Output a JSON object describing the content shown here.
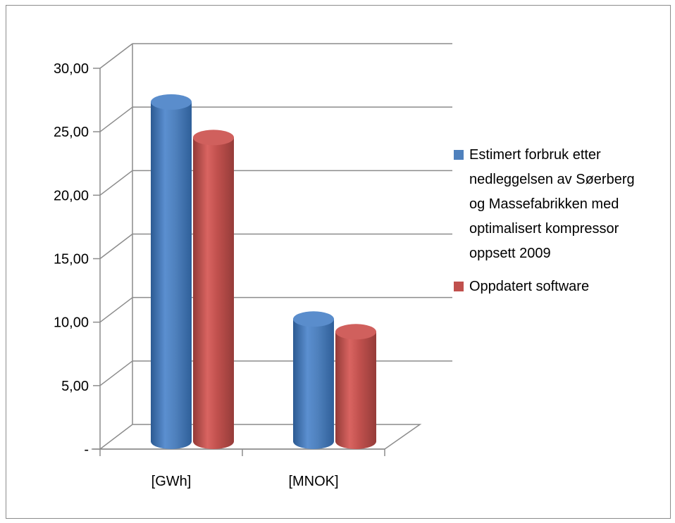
{
  "chart_data": {
    "type": "bar",
    "categories": [
      "[GWh]",
      "[MNOK]"
    ],
    "series": [
      {
        "name": "Estimert forbruk etter nedleggelsen av Søerberg og Massefabrikken med optimalisert kompressor oppsett 2009",
        "values": [
          26.9,
          9.8
        ],
        "color": "#4f81bd"
      },
      {
        "name": "Oppdatert software",
        "values": [
          24.1,
          8.8
        ],
        "color": "#c0504d"
      }
    ],
    "ylim": [
      0,
      30
    ],
    "yticks": [
      0,
      5,
      10,
      15,
      20,
      25,
      30
    ],
    "ytick_labels": [
      "-",
      "5,00",
      "10,00",
      "15,00",
      "20,00",
      "25,00",
      "30,00"
    ],
    "legend_position": "right",
    "grid": true,
    "legend": {
      "entries": [
        {
          "lines": [
            "Estimert forbruk etter",
            "nedleggelsen av Søerberg",
            "og Massefabrikken med",
            "optimalisert kompressor",
            "oppsett 2009"
          ],
          "color": "#4f81bd"
        },
        {
          "lines": [
            "Oppdatert software"
          ],
          "color": "#c0504d"
        }
      ]
    }
  }
}
